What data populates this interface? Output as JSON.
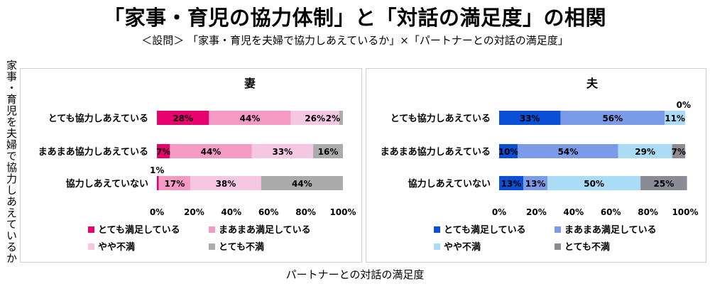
{
  "title": "「家事・育児の協力体制」と「対話の満足度」の相関",
  "subtitle": "＜設問＞ 「家事・育児を夫婦で協力しあえているか」×「パートナーとの対話の満足度」",
  "y_outer_label": "家事・育児を夫婦で協力しあえているか",
  "x_outer_label": "パートナーとの対話の満足度",
  "chart_data": [
    {
      "type": "bar",
      "orientation": "horizontal",
      "stacked": "percent",
      "title": "妻",
      "categories": [
        "とても協力しあえている",
        "まあまあ協力しあえている",
        "協力しあえていない"
      ],
      "series": [
        {
          "name": "とても満足している",
          "color": "#e8006f",
          "values": [
            28,
            7,
            1
          ]
        },
        {
          "name": "まあまあ満足している",
          "color": "#f59ac5",
          "values": [
            44,
            44,
            17
          ]
        },
        {
          "name": "やや不満",
          "color": "#f5c7e3",
          "values": [
            26,
            33,
            38
          ]
        },
        {
          "name": "とても不満",
          "color": "#ababab",
          "values": [
            2,
            16,
            44
          ]
        }
      ],
      "xlim": [
        0,
        100
      ],
      "xticks": [
        "0%",
        "20%",
        "40%",
        "60%",
        "80%",
        "100%"
      ],
      "legend": "bottom"
    },
    {
      "type": "bar",
      "orientation": "horizontal",
      "stacked": "percent",
      "title": "夫",
      "categories": [
        "とても協力しあえている",
        "まあまあ協力しあえている",
        "協力しあえていない"
      ],
      "series": [
        {
          "name": "とても満足している",
          "color": "#0b4fd6",
          "values": [
            33,
            10,
            13
          ]
        },
        {
          "name": "まあまあ満足している",
          "color": "#7b9be9",
          "values": [
            56,
            54,
            13
          ]
        },
        {
          "name": "やや不満",
          "color": "#aadcf5",
          "values": [
            11,
            29,
            50
          ]
        },
        {
          "name": "とても不満",
          "color": "#8b8b96",
          "values": [
            0,
            7,
            25
          ]
        }
      ],
      "xlim": [
        0,
        100
      ],
      "xticks": [
        "0%",
        "20%",
        "40%",
        "60%",
        "80%",
        "100%"
      ],
      "legend": "bottom"
    }
  ]
}
